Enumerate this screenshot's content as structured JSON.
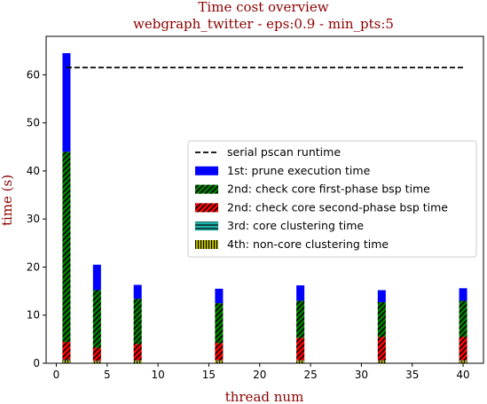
{
  "chart_data": {
    "type": "bar",
    "stacked": true,
    "title": "Time cost overview",
    "subtitle": "webgraph_twitter - eps:0.9 - min_pts:5",
    "xlabel": "thread num",
    "ylabel": "time (s)",
    "xlim": [
      -1,
      42
    ],
    "ylim": [
      0,
      68
    ],
    "xticks": [
      0,
      5,
      10,
      15,
      20,
      25,
      30,
      35,
      40
    ],
    "yticks": [
      0,
      10,
      20,
      30,
      40,
      50,
      60
    ],
    "legend_position": "center-right",
    "x": [
      1,
      4,
      8,
      16,
      24,
      32,
      40
    ],
    "reference_line": {
      "name": "serial pscan runtime",
      "value": 61.5,
      "x_range": [
        1,
        40
      ],
      "style": "dashed",
      "color": "#000000"
    },
    "series": [
      {
        "name": "4th: non-core clustering time",
        "values": [
          0.6,
          0.4,
          0.5,
          0.5,
          0.5,
          0.5,
          0.5
        ],
        "color": "#c8c800",
        "hatch": "vertical"
      },
      {
        "name": "3rd: core clustering time",
        "values": [
          0.2,
          0.1,
          0.1,
          0.1,
          0.1,
          0.1,
          0.1
        ],
        "color": "#20b2aa",
        "hatch": "horizontal"
      },
      {
        "name": "2nd: check core second-phase bsp time",
        "values": [
          3.6,
          2.7,
          3.4,
          3.6,
          4.7,
          4.9,
          4.9
        ],
        "color": "#ff0000",
        "hatch": "diagonal"
      },
      {
        "name": "2nd: check core first-phase bsp time",
        "values": [
          39.6,
          12.0,
          9.4,
          8.3,
          7.7,
          7.2,
          7.5
        ],
        "color": "#008000",
        "hatch": "diagonal"
      },
      {
        "name": "1st: prune execution time",
        "values": [
          20.5,
          5.3,
          2.9,
          3.0,
          3.2,
          2.5,
          2.6
        ],
        "color": "#0000ff",
        "hatch": "none"
      }
    ]
  }
}
